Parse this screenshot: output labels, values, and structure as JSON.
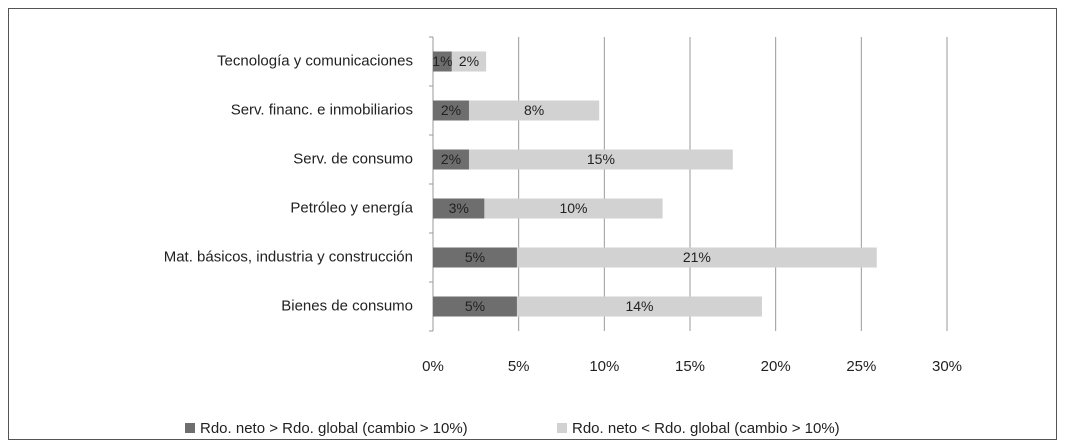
{
  "chart_data": {
    "type": "stacked-bar-horizontal",
    "categories": [
      "Tecnología y comunicaciones",
      "Serv. financ. e inmobiliarios",
      "Serv. de consumo",
      "Petróleo y energía",
      "Mat. básicos, industria y construcción",
      "Bienes de consumo"
    ],
    "series": [
      {
        "name": "Rdo. neto > Rdo. global (cambio > 10%)",
        "color": "#6e6e6e",
        "values": [
          1.1,
          2.1,
          2.1,
          3.0,
          4.9,
          4.9
        ],
        "value_labels": [
          "1%",
          "2%",
          "2%",
          "3%",
          "5%",
          "5%"
        ]
      },
      {
        "name": "Rdo. neto < Rdo. global (cambio > 10%)",
        "color": "#d2d2d2",
        "values": [
          2.0,
          7.6,
          15.4,
          10.4,
          21.0,
          14.3
        ],
        "value_labels": [
          "2%",
          "8%",
          "15%",
          "10%",
          "21%",
          "14%"
        ]
      }
    ],
    "xlim": [
      0,
      30
    ],
    "xticks": [
      {
        "value": 0,
        "label": "0%"
      },
      {
        "value": 5,
        "label": "5%"
      },
      {
        "value": 10,
        "label": "10%"
      },
      {
        "value": 15,
        "label": "15%"
      },
      {
        "value": 20,
        "label": "20%"
      },
      {
        "value": 25,
        "label": "25%"
      },
      {
        "value": 30,
        "label": "30%"
      }
    ],
    "grid": true,
    "legend": "bottom"
  }
}
